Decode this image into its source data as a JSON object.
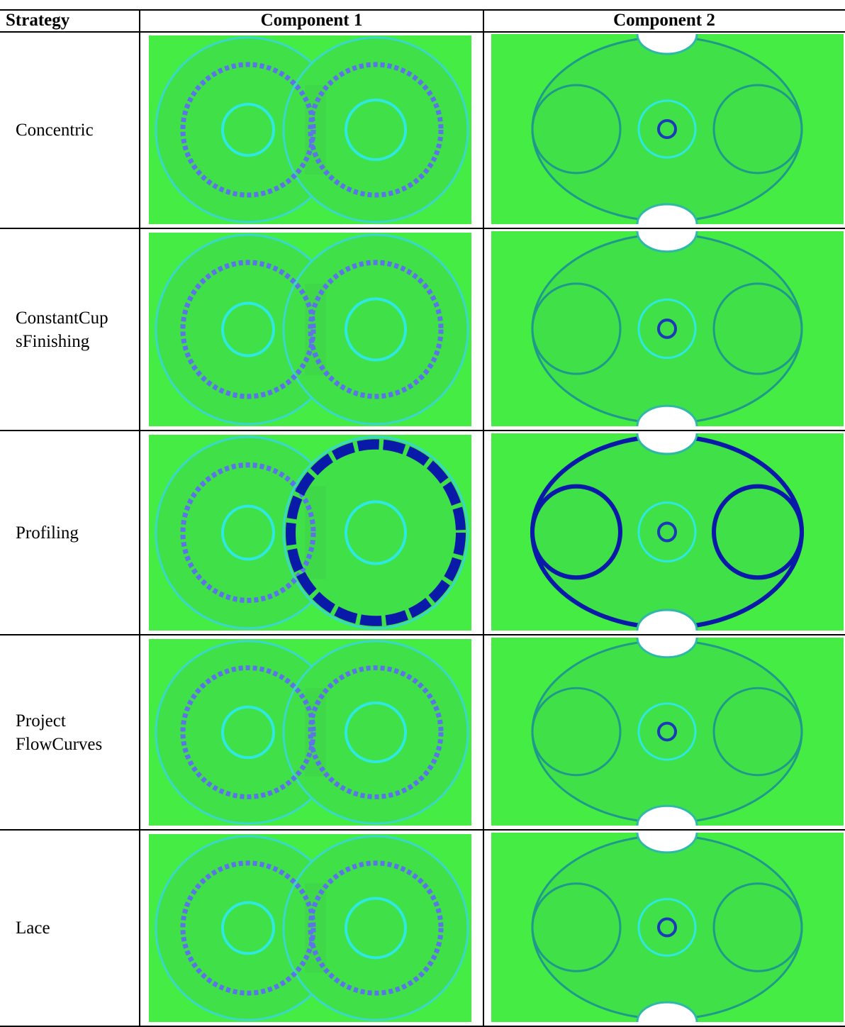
{
  "table": {
    "header": [
      "Strategy",
      "Component 1",
      "Component 2"
    ],
    "rows": [
      [
        [
          "Concentric"
        ]
      ],
      [
        [
          "ConstantCup",
          "sFinishing"
        ]
      ],
      [
        [
          "Profiling"
        ]
      ],
      [
        [
          "Project",
          "FlowCurves"
        ]
      ],
      [
        [
          "Lace"
        ]
      ]
    ]
  }
}
